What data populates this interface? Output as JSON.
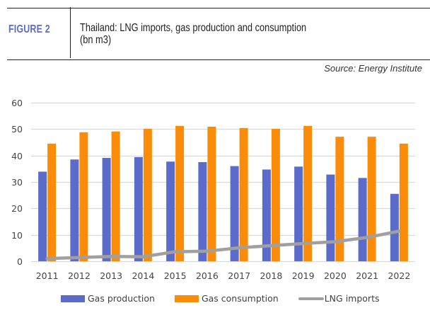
{
  "header": {
    "figure_label": "FIGURE 2",
    "title_line1": "Thailand: LNG imports, gas production and consumption",
    "title_line2": "(bn m3)",
    "source": "Source: Energy Institute",
    "figure_label_color": "#5b6bc9"
  },
  "chart_data": {
    "type": "bar",
    "title": "Thailand: LNG imports, gas production and consumption (bn m3)",
    "xlabel": "",
    "ylabel": "bn m3",
    "ylim": [
      0,
      60
    ],
    "yticks": [
      0,
      10,
      20,
      30,
      40,
      50,
      60
    ],
    "grid": true,
    "legend_position": "bottom",
    "categories": [
      "2011",
      "2012",
      "2013",
      "2014",
      "2015",
      "2016",
      "2017",
      "2018",
      "2019",
      "2020",
      "2021",
      "2022"
    ],
    "series": [
      {
        "name": "Gas production",
        "type": "bar",
        "color": "#5b6bc9",
        "values": [
          33.9,
          38.5,
          39.1,
          39.4,
          37.7,
          37.5,
          36.0,
          34.7,
          35.8,
          32.8,
          31.5,
          25.5
        ]
      },
      {
        "name": "Gas consumption",
        "type": "bar",
        "color": "#fb8c0a",
        "values": [
          44.5,
          48.8,
          49.1,
          50.1,
          51.2,
          50.9,
          50.4,
          50.1,
          51.2,
          47.1,
          47.1,
          44.5
        ]
      },
      {
        "name": "LNG imports",
        "type": "line",
        "color": "#a0a0a0",
        "values": [
          1.0,
          1.4,
          1.8,
          1.7,
          3.6,
          3.8,
          5.1,
          5.9,
          6.7,
          7.4,
          9.0,
          11.4
        ]
      }
    ]
  }
}
